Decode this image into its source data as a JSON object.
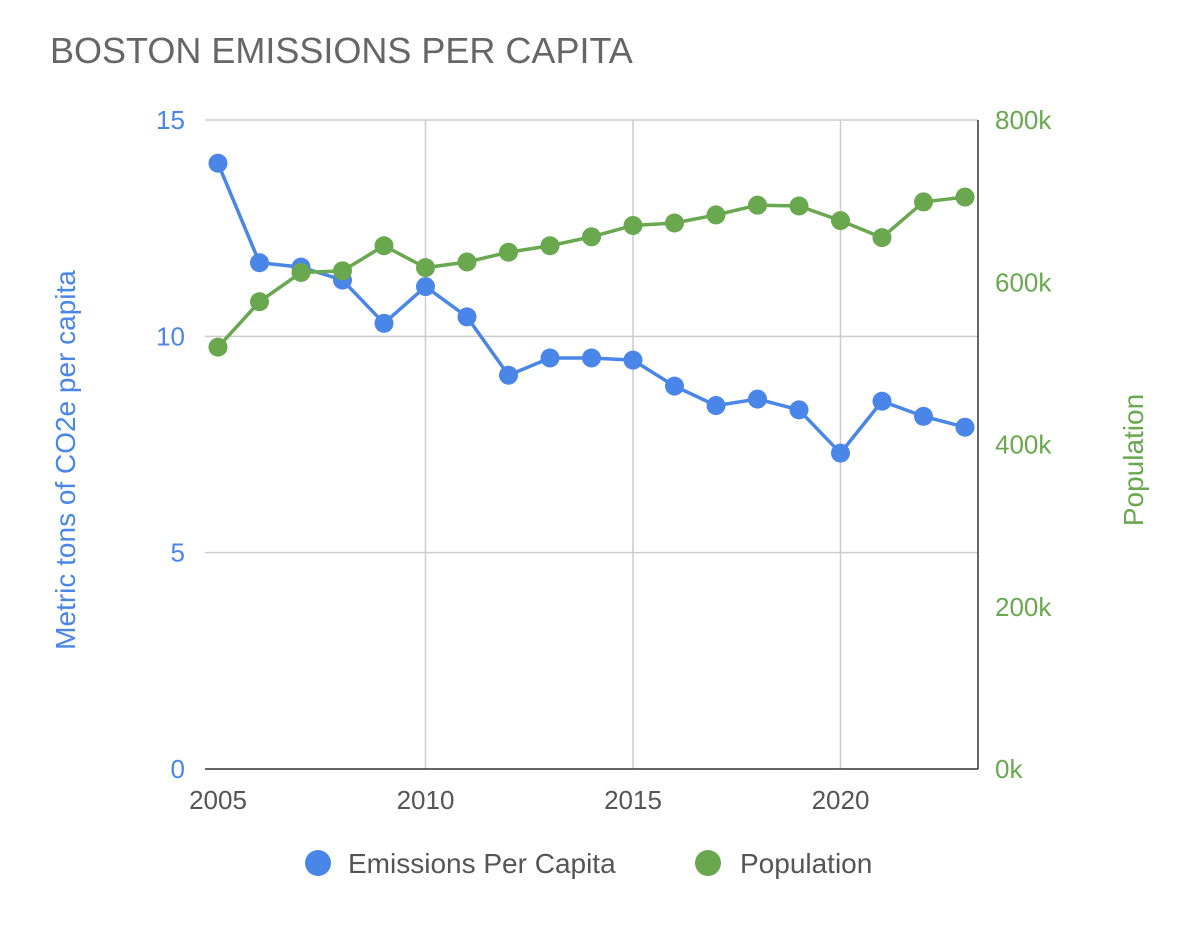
{
  "chart_data": {
    "type": "line",
    "title": "BOSTON EMISSIONS PER CAPITA",
    "x": [
      2005,
      2006,
      2007,
      2008,
      2009,
      2010,
      2011,
      2012,
      2013,
      2014,
      2015,
      2016,
      2017,
      2018,
      2019,
      2020,
      2021,
      2022,
      2023
    ],
    "x_ticks": [
      "2005",
      "2010",
      "2015",
      "2020"
    ],
    "x_tick_values": [
      2005,
      2010,
      2015,
      2020
    ],
    "xlim": [
      2005,
      2023
    ],
    "ylabel": "Metric tons of CO2e per capita",
    "ylim": [
      0,
      15
    ],
    "y_ticks": [
      "0",
      "5",
      "10",
      "15"
    ],
    "y2label": "Population",
    "y2lim": [
      0,
      800000
    ],
    "y2_ticks": [
      "0k",
      "200k",
      "400k",
      "600k",
      "800k"
    ],
    "grid": true,
    "legend_position": "bottom",
    "series": [
      {
        "name": "Emissions Per Capita",
        "axis": "left",
        "color": "#4a86e8",
        "values": [
          14.0,
          11.7,
          11.6,
          11.3,
          10.3,
          11.15,
          10.45,
          9.1,
          9.5,
          9.5,
          9.45,
          8.85,
          8.4,
          8.55,
          8.3,
          7.3,
          8.5,
          8.15,
          7.9
        ]
      },
      {
        "name": "Population",
        "axis": "right",
        "color": "#6aa84f",
        "values": [
          520000,
          576000,
          612000,
          614000,
          645000,
          618000,
          625000,
          637000,
          645000,
          656000,
          670000,
          673000,
          683000,
          695000,
          694000,
          676000,
          655000,
          699000,
          705000
        ]
      }
    ]
  }
}
